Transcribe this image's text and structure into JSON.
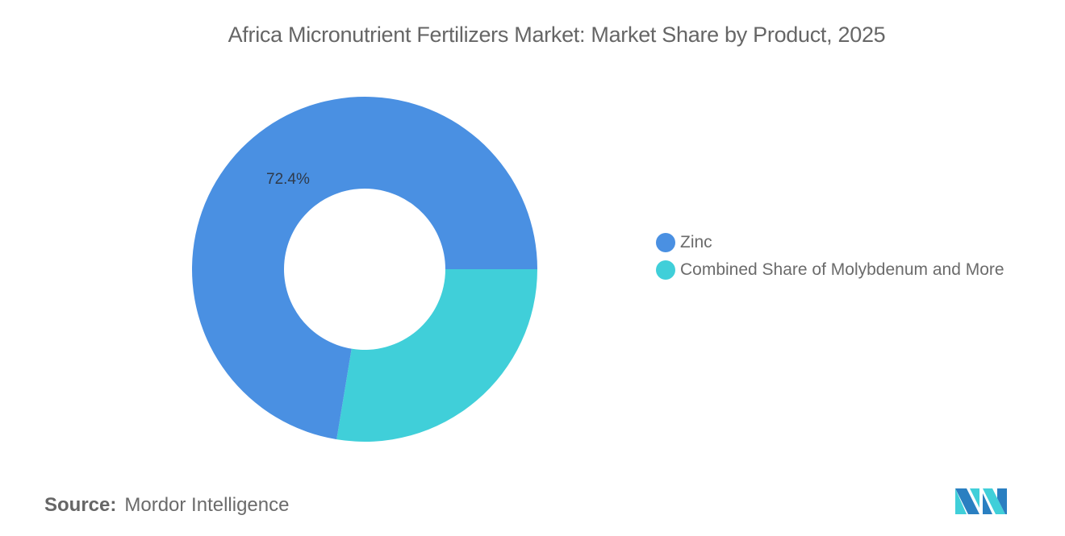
{
  "header": {
    "title": "Africa Micronutrient Fertilizers Market: Market Share by Product, 2025"
  },
  "chart_data": {
    "type": "pie",
    "variant": "donut",
    "title": "Africa Micronutrient Fertilizers Market: Market Share by Product, 2025",
    "categories": [
      "Zinc",
      "Combined Share of Molybdenum and More"
    ],
    "values": [
      72.4,
      27.6
    ],
    "colors": [
      "#4A90E2",
      "#40CFD9"
    ],
    "data_labels": [
      "72.4%",
      ""
    ],
    "legend_position": "right",
    "start_angle_deg": 90,
    "direction": "counterclockwise-from-3-oclock-for-first-slice"
  },
  "slice_label": "72.4%",
  "legend": {
    "items": [
      {
        "label": "Zinc",
        "color": "#4A90E2"
      },
      {
        "label": "Combined Share of Molybdenum and More",
        "color": "#40CFD9"
      }
    ]
  },
  "footer": {
    "source_key": "Source:",
    "source_value": "Mordor Intelligence"
  },
  "logo": {
    "name": "mordor-intelligence-logo",
    "colors": [
      "#2a7fc1",
      "#40CFD9",
      "#4A90E2"
    ]
  }
}
